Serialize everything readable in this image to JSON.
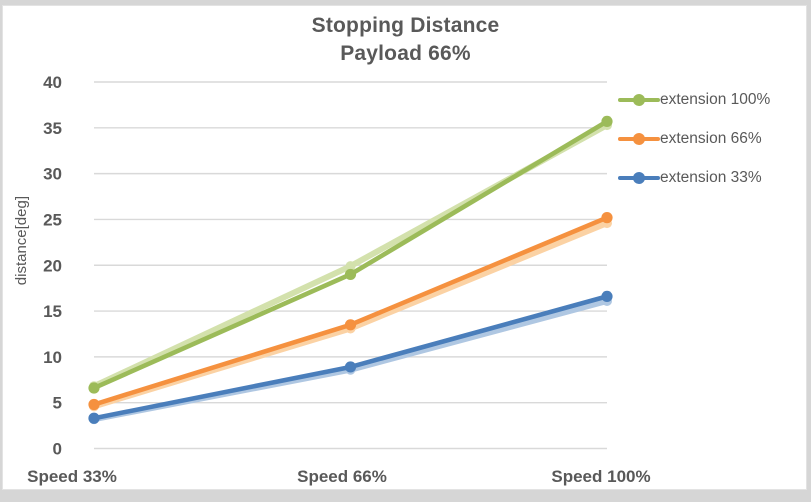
{
  "chart": {
    "title_line1": "Stopping Distance",
    "title_line2": "Payload 66%"
  },
  "chart_data": {
    "type": "line",
    "title": "Stopping Distance Payload 66%",
    "categories": [
      "Speed 33%",
      "Speed 66%",
      "Speed 100%"
    ],
    "series": [
      {
        "name": "extension 100%",
        "color": "#9CBB59",
        "halo_color": "#D3E1AC",
        "values": [
          6.6,
          19.0,
          35.7
        ],
        "halo_values": [
          6.8,
          19.9,
          35.3
        ]
      },
      {
        "name": "extension 66%",
        "color": "#F5913F",
        "halo_color": "#FBD2A4",
        "values": [
          4.8,
          13.5,
          25.2
        ],
        "halo_values": [
          4.6,
          13.1,
          24.6
        ]
      },
      {
        "name": "extension 33%",
        "color": "#4A7EBB",
        "halo_color": "#AFC7E2",
        "values": [
          3.3,
          8.9,
          16.6
        ],
        "halo_values": [
          3.2,
          8.6,
          16.1
        ]
      }
    ],
    "xlabel": "",
    "ylabel": "distance[deg]",
    "ylim": [
      0,
      40
    ],
    "yticks": [
      0,
      5,
      10,
      15,
      20,
      25,
      30,
      35,
      40
    ],
    "grid": true,
    "legend_position": "right"
  },
  "colors": {
    "text": "#595959",
    "gridline": "#D9D9D9",
    "plot_background": "#FFFFFF",
    "frame": "#D6D6D6"
  }
}
